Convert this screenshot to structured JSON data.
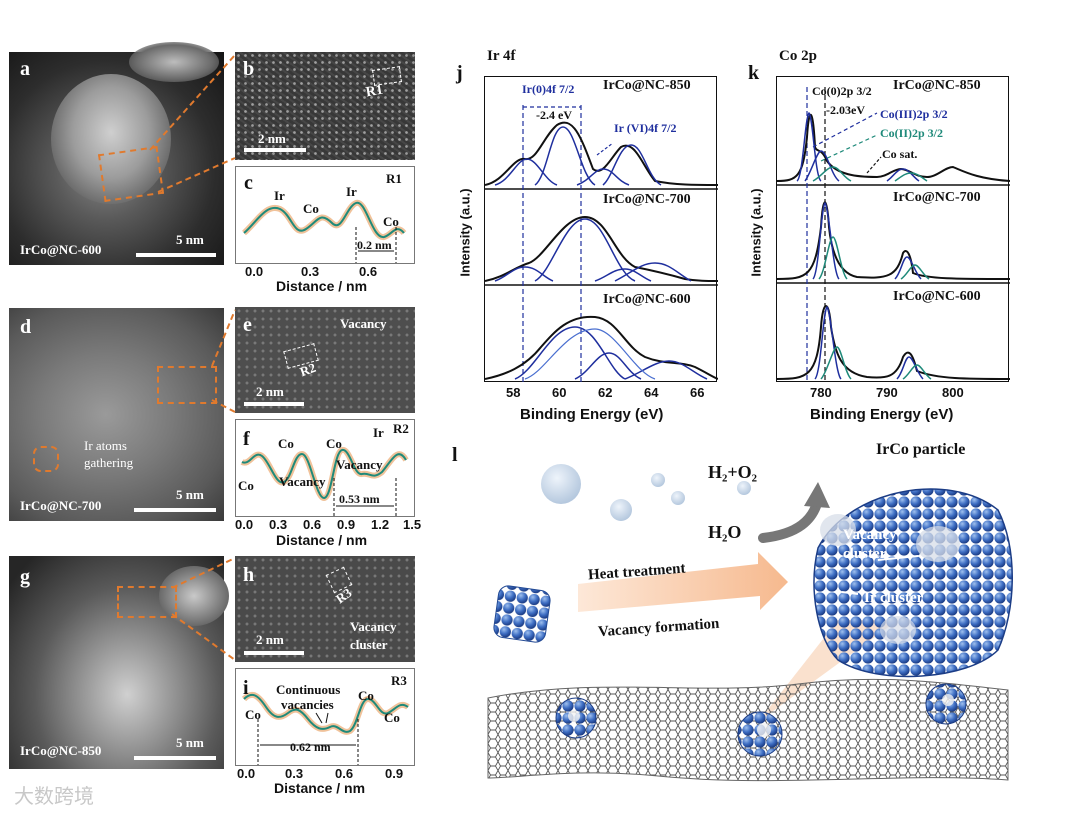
{
  "panels": {
    "a": {
      "letter": "a",
      "sample": "IrCo@NC-600",
      "scale": "5 nm"
    },
    "b": {
      "letter": "b",
      "scale": "2 nm",
      "region": "R1"
    },
    "c": {
      "letter": "c",
      "region": "R1",
      "peaks": [
        "Ir",
        "Co",
        "Ir",
        "Co"
      ],
      "distance_label": "0.2 nm",
      "xticks": [
        "0.0",
        "0.3",
        "0.6"
      ],
      "xlabel": "Distance / nm"
    },
    "d": {
      "letter": "d",
      "sample": "IrCo@NC-700",
      "scale": "5 nm",
      "note_line1": "Ir atoms",
      "note_line2": "gathering"
    },
    "e": {
      "letter": "e",
      "scale": "2 nm",
      "region": "R2",
      "note": "Vacancy"
    },
    "f": {
      "letter": "f",
      "region": "R2",
      "peaks": [
        "Co",
        "Co",
        "Ir",
        "Co"
      ],
      "vacancy1": "Vacancy",
      "vacancy2": "Vacancy",
      "distance_label": "0.53 nm",
      "xticks": [
        "0.0",
        "0.3",
        "0.6",
        "0.9",
        "1.2",
        "1.5"
      ],
      "xlabel": "Distance / nm"
    },
    "g": {
      "letter": "g",
      "sample": "IrCo@NC-850",
      "scale": "5 nm"
    },
    "h": {
      "letter": "h",
      "scale": "2 nm",
      "region": "R3",
      "note_line1": "Vacancy",
      "note_line2": "cluster"
    },
    "i": {
      "letter": "i",
      "region": "R3",
      "peaks": [
        "Co",
        "Co",
        "Co"
      ],
      "note_line1": "Continuous",
      "note_line2": "vacancies",
      "distance_label": "0.62 nm",
      "xticks": [
        "0.0",
        "0.3",
        "0.6",
        "0.9"
      ],
      "xlabel": "Distance / nm"
    },
    "j": {
      "letter": "j",
      "header": "Ir 4f",
      "ylabel": "Intensity (a.u.)",
      "xlabel": "Binding Energy (eV)",
      "xticks": [
        "58",
        "60",
        "62",
        "64",
        "66"
      ],
      "samples": [
        "IrCo@NC-850",
        "IrCo@NC-700",
        "IrCo@NC-600"
      ],
      "ann_ir0": "Ir(0)4f 7/2",
      "ann_shift": "-2.4 eV",
      "ann_ir4": "Ir (VI)4f 7/2"
    },
    "k": {
      "letter": "k",
      "header": "Co 2p",
      "ylabel": "Intensity (a.u.)",
      "xlabel": "Binding Energy (eV)",
      "xticks": [
        "780",
        "790",
        "800"
      ],
      "samples": [
        "IrCo@NC-850",
        "IrCo@NC-700",
        "IrCo@NC-600"
      ],
      "ann_co0": "Co(0)2p 3/2",
      "ann_shift": "-2.03eV",
      "ann_co3": "Co(III)2p 3/2",
      "ann_co2": "Co(II)2p 3/2",
      "ann_sat": "Co sat."
    },
    "l": {
      "letter": "l",
      "particle": "IrCo particle",
      "gas": "H₂+O₂",
      "water": "H₂O",
      "step1": "Heat treatment",
      "step2": "Vacancy formation",
      "vac1": "Vacancy",
      "vac2": "cluster",
      "ircluster": "Ir cluster"
    }
  },
  "watermark": "大数跨境",
  "colors": {
    "orange": "#e07a2e",
    "navy": "#1f2f9e",
    "teal": "#1f8a7a",
    "blue_particle": "#3f6fc4"
  }
}
